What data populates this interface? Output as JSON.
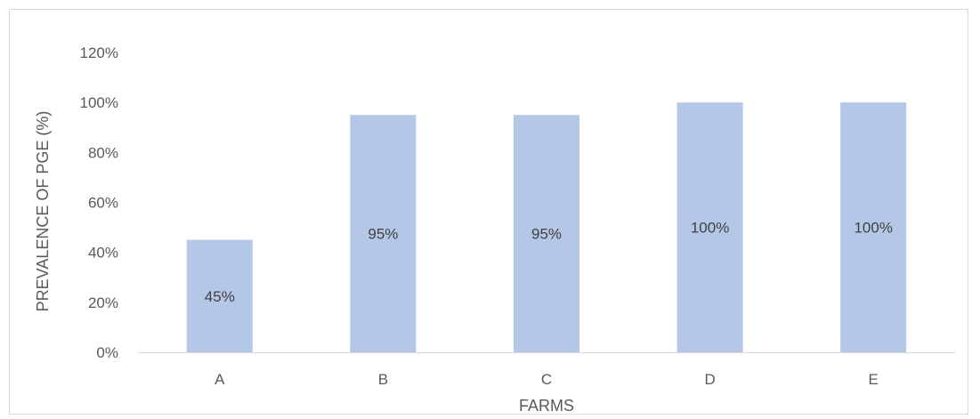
{
  "chart_data": {
    "type": "bar",
    "categories": [
      "A",
      "B",
      "C",
      "D",
      "E"
    ],
    "values": [
      45,
      95,
      95,
      100,
      100
    ],
    "data_labels": [
      "45%",
      "95%",
      "95%",
      "100%",
      "100%"
    ],
    "xlabel": "FARMS",
    "ylabel": "PREVALENCE OF PGE (%)",
    "ylim": [
      0,
      120
    ],
    "yticks": [
      0,
      20,
      40,
      60,
      80,
      100,
      120
    ],
    "ytick_labels": [
      "0%",
      "20%",
      "40%",
      "60%",
      "80%",
      "100%",
      "120%"
    ],
    "grid": false,
    "legend": "none",
    "bar_color": "#b4c7e7",
    "axis_color": "#d9d9d9"
  }
}
